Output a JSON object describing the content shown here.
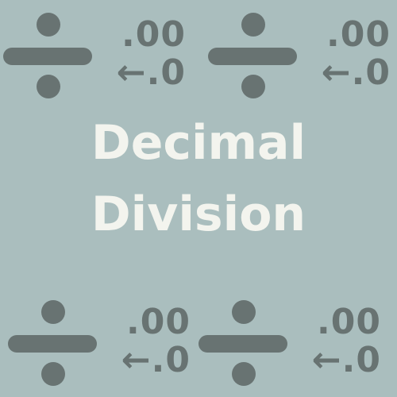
{
  "icon_names": [
    "division-sign-icon",
    "decimal-shift-icon"
  ],
  "tiles": [
    {
      "line1": ".00",
      "line2": "←.0"
    },
    {
      "line1": ".00",
      "line2": "←.0"
    },
    {
      "line1": ".00",
      "line2": "←.0"
    },
    {
      "line1": ".00",
      "line2": "←.0"
    }
  ],
  "title": {
    "line1": "Decimal",
    "line2": "Division"
  },
  "colors": {
    "background": "#aabebe",
    "icon": "#687372",
    "title_text": "#f3f4ee"
  }
}
